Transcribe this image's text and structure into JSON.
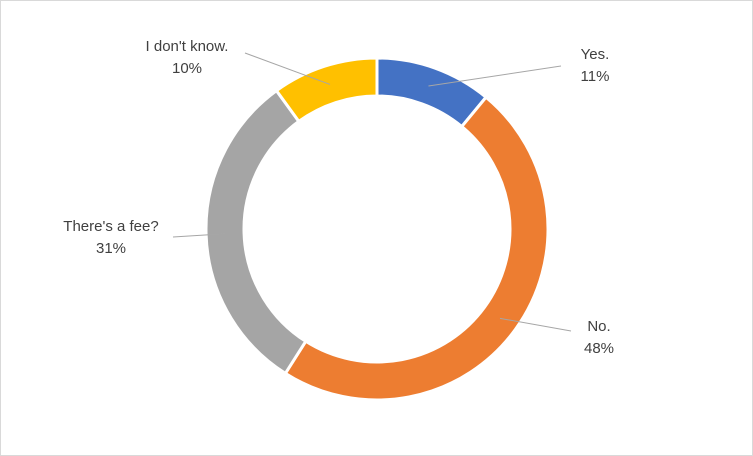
{
  "chart_data": {
    "type": "pie",
    "subtype": "doughnut",
    "title": "",
    "categories": [
      "Yes.",
      "No.",
      "There's a fee?",
      "I don't know."
    ],
    "values": [
      11,
      48,
      31,
      10
    ],
    "value_labels": [
      "11%",
      "48%",
      "31%",
      "10%"
    ],
    "colors": [
      "#4472C4",
      "#ED7D31",
      "#A5A5A5",
      "#FFC000"
    ],
    "legend": "none",
    "data_labels": "outside-with-leader-lines"
  }
}
